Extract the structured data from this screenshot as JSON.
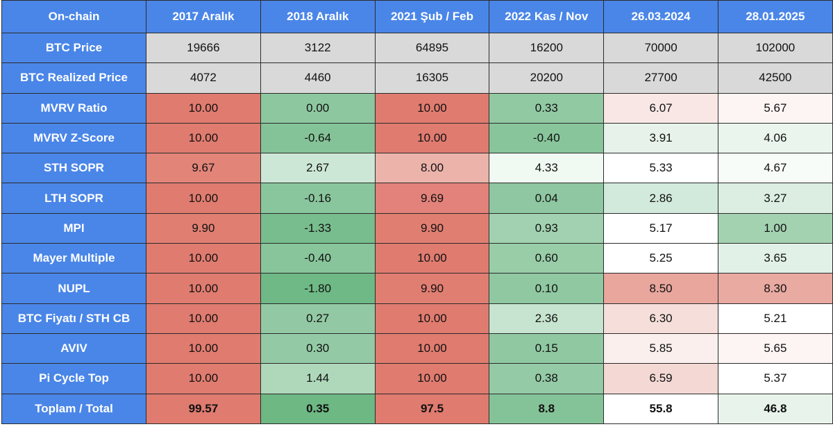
{
  "header": [
    "On-chain",
    "2017 Aralık",
    "2018 Aralık",
    "2021 Şub / Feb",
    "2022 Kas / Nov",
    "26.03.2024",
    "28.01.2025"
  ],
  "rows": [
    {
      "label": "BTC Price",
      "cells": [
        {
          "v": "19666",
          "bg": "#d9d9d9"
        },
        {
          "v": "3122",
          "bg": "#d9d9d9"
        },
        {
          "v": "64895",
          "bg": "#d9d9d9"
        },
        {
          "v": "16200",
          "bg": "#d9d9d9"
        },
        {
          "v": "70000",
          "bg": "#d9d9d9"
        },
        {
          "v": "102000",
          "bg": "#d9d9d9"
        }
      ]
    },
    {
      "label": "BTC Realized Price",
      "cells": [
        {
          "v": "4072",
          "bg": "#d9d9d9"
        },
        {
          "v": "4460",
          "bg": "#d9d9d9"
        },
        {
          "v": "16305",
          "bg": "#d9d9d9"
        },
        {
          "v": "20200",
          "bg": "#d9d9d9"
        },
        {
          "v": "27700",
          "bg": "#d9d9d9"
        },
        {
          "v": "42500",
          "bg": "#d9d9d9"
        }
      ]
    },
    {
      "label": "MVRV Ratio",
      "cells": [
        {
          "v": "10.00",
          "bg": "#e07b6f"
        },
        {
          "v": "0.00",
          "bg": "#8dc7a0"
        },
        {
          "v": "10.00",
          "bg": "#e07b6f"
        },
        {
          "v": "0.33",
          "bg": "#91c9a3"
        },
        {
          "v": "6.07",
          "bg": "#f8e7e5"
        },
        {
          "v": "5.67",
          "bg": "#fdf5f4"
        }
      ]
    },
    {
      "label": "MVRV Z-Score",
      "cells": [
        {
          "v": "10.00",
          "bg": "#e07b6f"
        },
        {
          "v": "-0.64",
          "bg": "#84c398"
        },
        {
          "v": "10.00",
          "bg": "#e07b6f"
        },
        {
          "v": "-0.40",
          "bg": "#88c59b"
        },
        {
          "v": "3.91",
          "bg": "#e7f3ea"
        },
        {
          "v": "4.06",
          "bg": "#eaf5ed"
        }
      ]
    },
    {
      "label": "STH SOPR",
      "cells": [
        {
          "v": "9.67",
          "bg": "#e38479"
        },
        {
          "v": "2.67",
          "bg": "#cde7d6"
        },
        {
          "v": "8.00",
          "bg": "#ecb3ab"
        },
        {
          "v": "4.33",
          "bg": "#f1f9f3"
        },
        {
          "v": "5.33",
          "bg": "#ffffff"
        },
        {
          "v": "4.67",
          "bg": "#f8fcf9"
        }
      ]
    },
    {
      "label": "LTH SOPR",
      "cells": [
        {
          "v": "10.00",
          "bg": "#e07b6f"
        },
        {
          "v": "-0.16",
          "bg": "#8ac69d"
        },
        {
          "v": "9.69",
          "bg": "#e2827a"
        },
        {
          "v": "0.04",
          "bg": "#8ec7a1"
        },
        {
          "v": "2.86",
          "bg": "#d2eadb"
        },
        {
          "v": "3.27",
          "bg": "#dbeee1"
        }
      ]
    },
    {
      "label": "MPI",
      "cells": [
        {
          "v": "9.90",
          "bg": "#e17e72"
        },
        {
          "v": "-1.33",
          "bg": "#78bd8d"
        },
        {
          "v": "9.90",
          "bg": "#e17e72"
        },
        {
          "v": "0.93",
          "bg": "#a1d1b0"
        },
        {
          "v": "5.17",
          "bg": "#ffffff"
        },
        {
          "v": "1.00",
          "bg": "#a3d2b1"
        }
      ]
    },
    {
      "label": "Mayer Multiple",
      "cells": [
        {
          "v": "10.00",
          "bg": "#e07b6f"
        },
        {
          "v": "-0.40",
          "bg": "#88c59b"
        },
        {
          "v": "10.00",
          "bg": "#e07b6f"
        },
        {
          "v": "0.60",
          "bg": "#98cda8"
        },
        {
          "v": "5.25",
          "bg": "#ffffff"
        },
        {
          "v": "3.65",
          "bg": "#e2f1e7"
        }
      ]
    },
    {
      "label": "NUPL",
      "cells": [
        {
          "v": "10.00",
          "bg": "#e07b6f"
        },
        {
          "v": "-1.80",
          "bg": "#6eb985"
        },
        {
          "v": "9.90",
          "bg": "#e17e72"
        },
        {
          "v": "0.10",
          "bg": "#8fc8a1"
        },
        {
          "v": "8.50",
          "bg": "#e8a69d"
        },
        {
          "v": "8.30",
          "bg": "#e9aaa2"
        }
      ]
    },
    {
      "label": "BTC Fiyatı / STH CB",
      "cells": [
        {
          "v": "10.00",
          "bg": "#e07b6f"
        },
        {
          "v": "0.27",
          "bg": "#92c9a4"
        },
        {
          "v": "10.00",
          "bg": "#e07b6f"
        },
        {
          "v": "2.36",
          "bg": "#c6e4cf"
        },
        {
          "v": "6.30",
          "bg": "#f6dfdb"
        },
        {
          "v": "5.21",
          "bg": "#ffffff"
        }
      ]
    },
    {
      "label": "AVIV",
      "cells": [
        {
          "v": "10.00",
          "bg": "#e07b6f"
        },
        {
          "v": "0.30",
          "bg": "#93caa5"
        },
        {
          "v": "10.00",
          "bg": "#e07b6f"
        },
        {
          "v": "0.15",
          "bg": "#90c8a2"
        },
        {
          "v": "5.85",
          "bg": "#faefed"
        },
        {
          "v": "5.65",
          "bg": "#fdf5f4"
        }
      ]
    },
    {
      "label": "Pi Cycle Top",
      "cells": [
        {
          "v": "10.00",
          "bg": "#e07b6f"
        },
        {
          "v": "1.44",
          "bg": "#afd8bb"
        },
        {
          "v": "10.00",
          "bg": "#e07b6f"
        },
        {
          "v": "0.38",
          "bg": "#94caa6"
        },
        {
          "v": "6.59",
          "bg": "#f3d8d4"
        },
        {
          "v": "5.37",
          "bg": "#ffffff"
        }
      ]
    },
    {
      "label": "Toplam / Total",
      "bold": true,
      "cells": [
        {
          "v": "99.57",
          "bg": "#e07b6f"
        },
        {
          "v": "0.35",
          "bg": "#6db883"
        },
        {
          "v": "97.5",
          "bg": "#e07b6f"
        },
        {
          "v": "8.8",
          "bg": "#84c398"
        },
        {
          "v": "55.8",
          "bg": "#ffffff"
        },
        {
          "v": "46.8",
          "bg": "#e8f4eb"
        }
      ]
    }
  ],
  "colors": {
    "header_bg": "#4a86e8",
    "header_text": "#ffffff",
    "border": "#2b2b2b"
  }
}
